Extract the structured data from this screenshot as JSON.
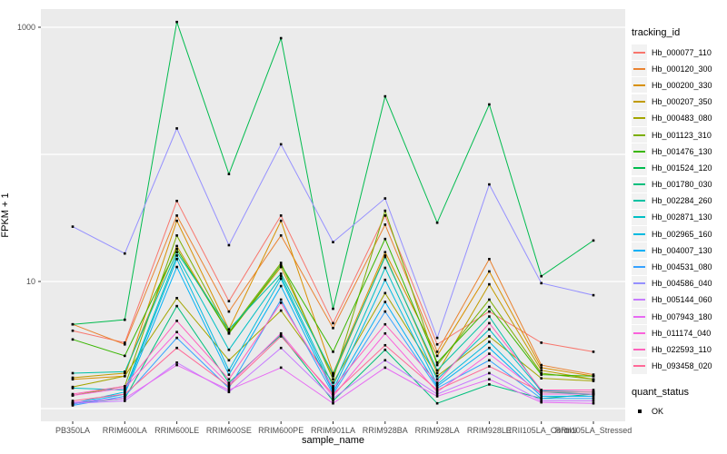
{
  "figure": {
    "background": "#FFFFFF",
    "panel_background": "#EBEBEB",
    "grid_color": "#FFFFFF",
    "axis_text_color": "#4D4D4D",
    "tick_mark_color": "#333333",
    "point_color": "#000000"
  },
  "axes": {
    "x_title": "sample_name",
    "y_title": "FPKM + 1"
  },
  "legend": {
    "tracking_title": "tracking_id",
    "quant_title": "quant_status",
    "quant_items": [
      {
        "label": "OK"
      }
    ]
  },
  "chart_data": {
    "type": "line",
    "title": "",
    "xlabel": "sample_name",
    "ylabel": "FPKM + 1",
    "y_scale": "log10",
    "ylim": [
      0.85,
      1400
    ],
    "y_labeled_breaks": [
      10,
      1000
    ],
    "y_gridlines": [
      1,
      10,
      100,
      1000
    ],
    "grid": true,
    "legend_position": "right",
    "point_shape": "small black square (quant_status = OK)",
    "categories": [
      "PB350LA",
      "RRIM600LA",
      "RRIM600LE",
      "RRIM600SE",
      "RRIM600PE",
      "RRIM901LA",
      "RRIM928BA",
      "RRIM928LA",
      "RRIM928LE",
      "RRII105LA_Control",
      "RRII105LA_Stressed"
    ],
    "series": [
      {
        "name": "Hb_000077_110",
        "color": "#F8766D",
        "values": [
          4.1,
          3.3,
          43,
          7.0,
          33,
          4.7,
          33,
          3.2,
          5.8,
          3.3,
          2.8
        ]
      },
      {
        "name": "Hb_000120_300",
        "color": "#EA8331",
        "values": [
          4.6,
          3.2,
          33,
          5.8,
          23,
          4.3,
          28,
          2.8,
          15,
          2.2,
          1.85
        ]
      },
      {
        "name": "Hb_000200_330",
        "color": "#D89000",
        "values": [
          1.7,
          1.8,
          30,
          4.2,
          30,
          1.9,
          17,
          2.6,
          12,
          2.1,
          1.8
        ]
      },
      {
        "name": "Hb_000207_350",
        "color": "#C09B00",
        "values": [
          1.75,
          1.9,
          19,
          3.9,
          13,
          1.8,
          16,
          1.9,
          9.5,
          2.0,
          1.7
        ]
      },
      {
        "name": "Hb_000483_080",
        "color": "#A3A500",
        "values": [
          1.48,
          1.8,
          7.4,
          2.4,
          5.9,
          1.6,
          8.1,
          1.8,
          3.7,
          1.73,
          1.65
        ]
      },
      {
        "name": "Hb_001123_310",
        "color": "#7CAE00",
        "values": [
          1.27,
          1.5,
          23,
          4.0,
          14,
          1.7,
          36,
          2.2,
          7.2,
          1.9,
          1.7
        ]
      },
      {
        "name": "Hb_001476_130",
        "color": "#39B600",
        "values": [
          3.5,
          2.6,
          18,
          3.9,
          13.5,
          2.8,
          21.6,
          2.3,
          6.3,
          1.85,
          1.8
        ]
      },
      {
        "name": "Hb_001524_120",
        "color": "#00BB4E",
        "values": [
          4.6,
          5.0,
          1100,
          70,
          820,
          6.1,
          286,
          29,
          247,
          11,
          21
        ]
      },
      {
        "name": "Hb_001780_030",
        "color": "#00BF7D",
        "values": [
          1.1,
          1.2,
          6.4,
          1.6,
          3.8,
          1.15,
          2.9,
          1.1,
          1.55,
          1.2,
          1.3
        ]
      },
      {
        "name": "Hb_002284_260",
        "color": "#00C1A3",
        "values": [
          1.9,
          1.95,
          17,
          4.2,
          11.5,
          1.87,
          15.6,
          2.0,
          5.3,
          1.35,
          1.3
        ]
      },
      {
        "name": "Hb_002871_130",
        "color": "#00BFC4",
        "values": [
          1.45,
          1.4,
          16,
          2.9,
          11,
          1.5,
          12.8,
          1.7,
          4.2,
          1.38,
          1.35
        ]
      },
      {
        "name": "Hb_002965_160",
        "color": "#00BAE0",
        "values": [
          1.1,
          1.35,
          15,
          2.0,
          10.5,
          1.4,
          10.3,
          1.55,
          3.35,
          1.3,
          1.3
        ]
      },
      {
        "name": "Hb_004007_130",
        "color": "#00B0F6",
        "values": [
          1.08,
          1.3,
          13,
          1.85,
          9.2,
          1.35,
          6.9,
          1.5,
          3.0,
          1.25,
          1.25
        ]
      },
      {
        "name": "Hb_004531_080",
        "color": "#35A2FF",
        "values": [
          1.06,
          1.25,
          3.6,
          1.45,
          7.2,
          1.3,
          5.8,
          1.45,
          2.4,
          1.2,
          1.2
        ]
      },
      {
        "name": "Hb_004586_040",
        "color": "#9590FF",
        "values": [
          27,
          16.6,
          160,
          19.3,
          120,
          20.4,
          45,
          3.6,
          58,
          9.7,
          7.8
        ]
      },
      {
        "name": "Hb_005144_060",
        "color": "#C77CFF",
        "values": [
          1.1,
          1.15,
          2.3,
          1.35,
          3.0,
          1.2,
          2.4,
          1.3,
          1.9,
          1.15,
          1.15
        ]
      },
      {
        "name": "Hb_007943_180",
        "color": "#E76BF3",
        "values": [
          1.12,
          1.2,
          2.2,
          1.4,
          2.1,
          1.1,
          2.1,
          1.25,
          1.7,
          1.12,
          1.1
        ]
      },
      {
        "name": "Hb_011174_040",
        "color": "#FA62DB",
        "values": [
          1.27,
          1.45,
          4.0,
          1.55,
          3.9,
          1.25,
          3.9,
          1.35,
          2.7,
          1.3,
          1.3
        ]
      },
      {
        "name": "Hb_022593_110",
        "color": "#FF62BC",
        "values": [
          1.3,
          1.5,
          4.9,
          1.7,
          6.8,
          1.45,
          4.6,
          1.6,
          4.7,
          1.4,
          1.4
        ]
      },
      {
        "name": "Hb_093458_020",
        "color": "#FF6A98",
        "values": [
          1.15,
          1.3,
          3.0,
          1.5,
          3.7,
          1.3,
          3.15,
          1.4,
          2.15,
          1.35,
          1.35
        ]
      }
    ]
  }
}
